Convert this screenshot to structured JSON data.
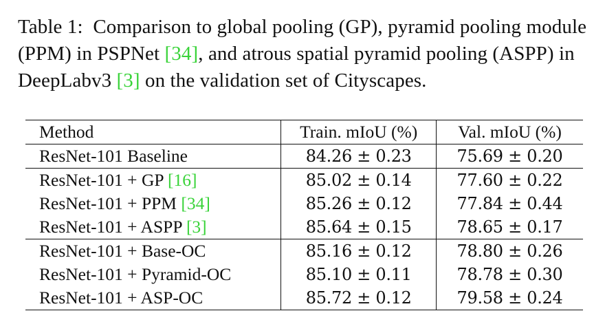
{
  "caption": {
    "label": "Table 1:",
    "part1": "Comparison to global pooling (GP), pyramid pooling module (PPM) in PSPNet ",
    "cite1": "[34]",
    "part2": ", and atrous spatial pyramid pooling (ASPP) in DeepLabv3 ",
    "cite2": "[3]",
    "part3": " on the validation set of Cityscapes."
  },
  "table": {
    "headers": [
      "Method",
      "Train. mIoU (%)",
      "Val. mIoU (%)"
    ],
    "rows": [
      {
        "method": "ResNet-101 Baseline",
        "cite": "",
        "train": "84.26 ± 0.23",
        "val": "75.69 ± 0.20"
      },
      {
        "method": "ResNet-101 + GP ",
        "cite": "[16]",
        "train": "85.02 ± 0.14",
        "val": "77.60 ± 0.22"
      },
      {
        "method": "ResNet-101 + PPM ",
        "cite": "[34]",
        "train": "85.26 ± 0.12",
        "val": "77.84 ± 0.44"
      },
      {
        "method": "ResNet-101 + ASPP ",
        "cite": "[3]",
        "train": "85.64 ± 0.15",
        "val": "78.65 ± 0.17"
      },
      {
        "method": "ResNet-101 + Base-OC",
        "cite": "",
        "train": "85.16 ± 0.12",
        "val": "78.80 ± 0.26"
      },
      {
        "method": "ResNet-101 + Pyramid-OC",
        "cite": "",
        "train": "85.10 ± 0.11",
        "val": "78.78 ± 0.30"
      },
      {
        "method": "ResNet-101 + ASP-OC",
        "cite": "",
        "train": "85.72 ± 0.12",
        "val": "79.58 ± 0.24",
        "bold": true
      }
    ]
  },
  "colors": {
    "citation": "#39d339",
    "text": "#111111"
  }
}
